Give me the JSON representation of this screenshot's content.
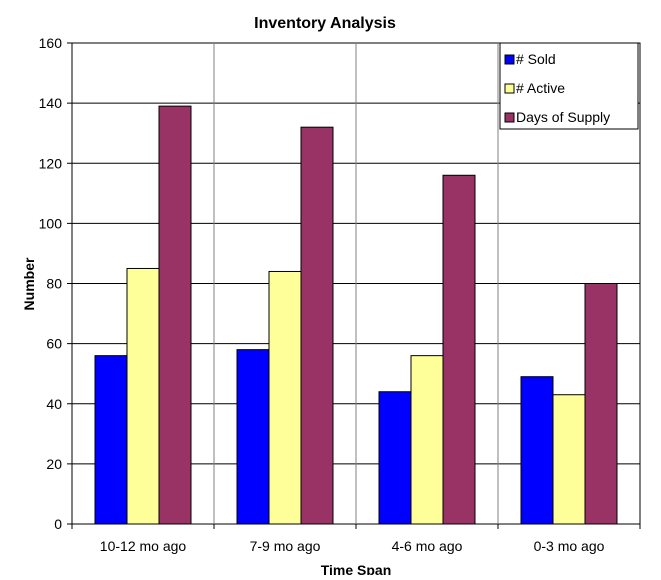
{
  "chart_data": {
    "type": "bar",
    "title": "Inventory Analysis",
    "xlabel": "Time Span",
    "ylabel": "Number",
    "categories": [
      "10-12 mo ago",
      "7-9 mo ago",
      "4-6 mo ago",
      "0-3 mo ago"
    ],
    "series": [
      {
        "name": "# Sold",
        "values": [
          56,
          58,
          44,
          49
        ],
        "color": "#0000FF"
      },
      {
        "name": "# Active",
        "values": [
          85,
          84,
          56,
          43
        ],
        "color": "#FFFF99"
      },
      {
        "name": "Days of Supply",
        "values": [
          139,
          132,
          116,
          80
        ],
        "color": "#993366"
      }
    ],
    "ylim": [
      0,
      160
    ],
    "yticks": [
      "0",
      "20",
      "40",
      "60",
      "80",
      "100",
      "120",
      "140",
      "160"
    ],
    "grid": true,
    "legend": {
      "position": "top-right"
    }
  }
}
